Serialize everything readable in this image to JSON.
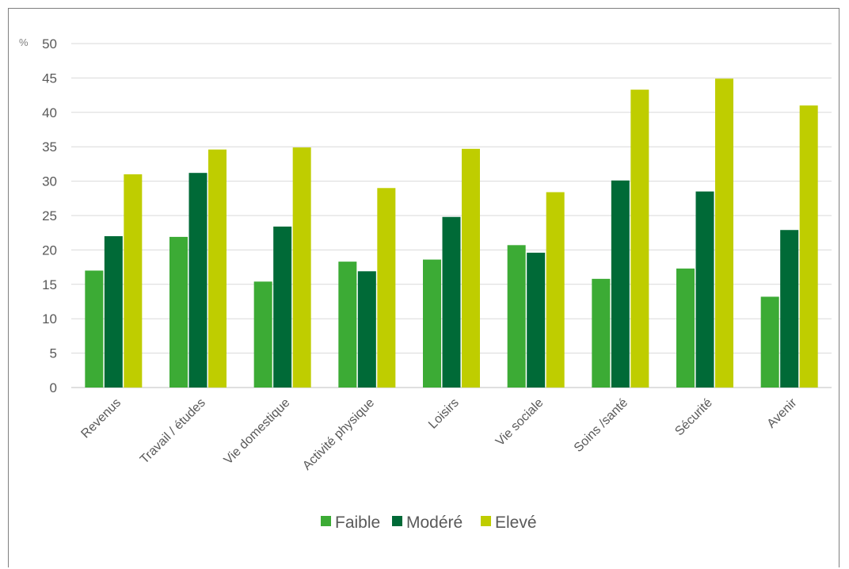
{
  "chart_data": {
    "type": "bar",
    "unit_label": "%",
    "categories": [
      "Revenus",
      "Travail / études",
      "Vie domestique",
      "Activité physique",
      "Loisirs",
      "Vie sociale",
      "Soins /santé",
      "Sécurité",
      "Avenir"
    ],
    "series": [
      {
        "name": "Faible",
        "color": "#3cab35",
        "values": [
          17.0,
          21.9,
          15.4,
          18.3,
          18.6,
          20.7,
          15.8,
          17.3,
          13.2
        ]
      },
      {
        "name": "Modéré",
        "color": "#006a37",
        "values": [
          22.0,
          31.2,
          23.4,
          16.9,
          24.8,
          19.6,
          30.1,
          28.5,
          22.9
        ]
      },
      {
        "name": "Elevé",
        "color": "#bfcd00",
        "values": [
          31.0,
          34.6,
          34.9,
          29.0,
          34.7,
          28.4,
          43.3,
          44.9,
          41.0
        ]
      }
    ],
    "ylim": [
      0,
      50
    ],
    "yticks": [
      0,
      5,
      10,
      15,
      20,
      25,
      30,
      35,
      40,
      45,
      50
    ],
    "grid": true,
    "legend_position": "bottom"
  }
}
